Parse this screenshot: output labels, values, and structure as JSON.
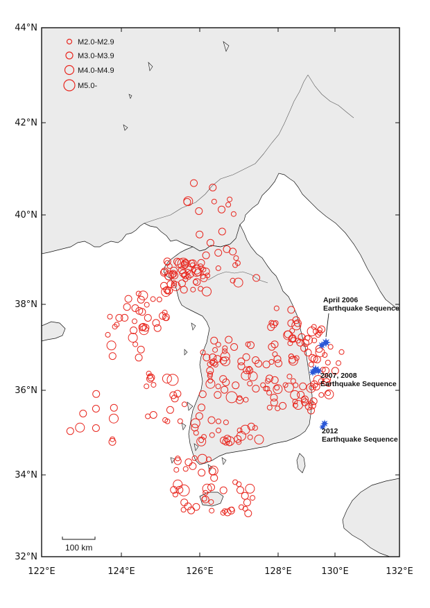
{
  "map": {
    "lat_labels": [
      "44°N",
      "42°N",
      "40°N",
      "38°N",
      "36°N",
      "34°N",
      "32°N"
    ],
    "lon_labels": [
      "122°E",
      "124°E",
      "126°E",
      "128°E",
      "130°E",
      "132°E"
    ],
    "land_color": "#ebebeb",
    "sea_color": "#ffffff",
    "marker_color": "#e8261e",
    "star_color": "#2a57d6"
  },
  "legend": [
    {
      "label": "M2.0-M2.9"
    },
    {
      "label": "M3.0-M3.9"
    },
    {
      "label": "M4.0-M4.9"
    },
    {
      "label": "M5.0-"
    }
  ],
  "annotations": {
    "a2006_line1": "April 2006",
    "a2006_line2": "Earthquake Sequence",
    "a2007_line1": "2007, 2008",
    "a2007_line2": "Earthquake Sequence",
    "a2012_line1": "2012",
    "a2012_line2": "Earthquake Sequence"
  },
  "scale_bar": {
    "label": "100 km"
  }
}
